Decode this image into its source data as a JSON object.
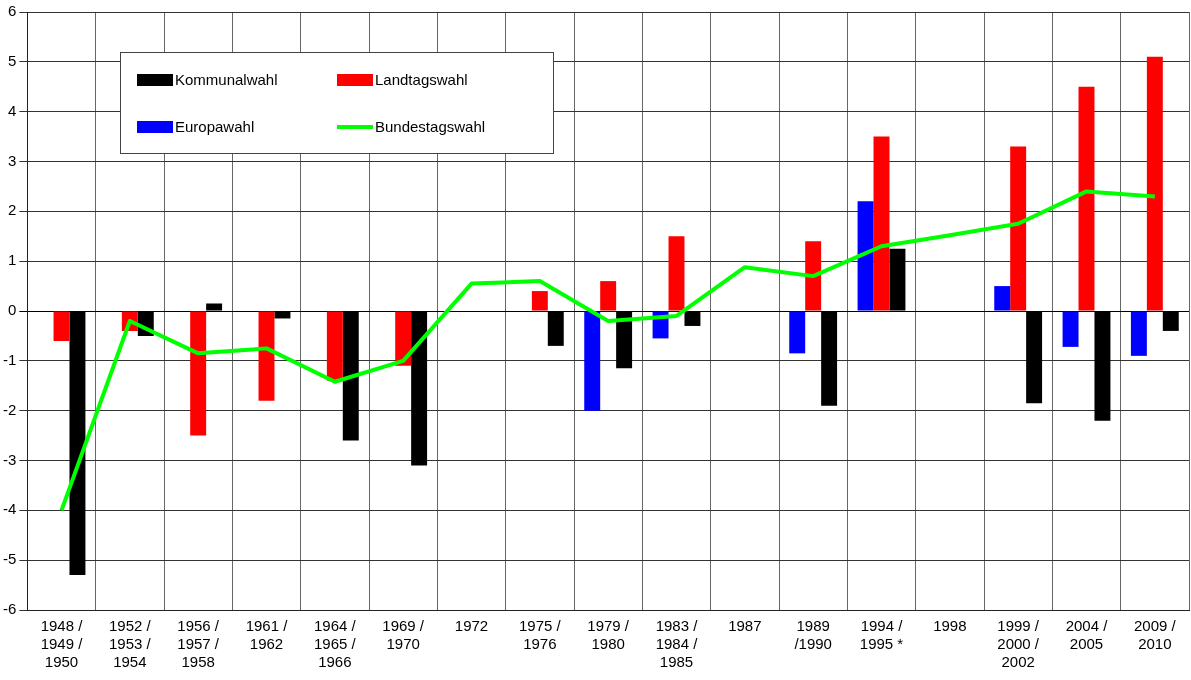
{
  "chart_data": {
    "type": "bar",
    "categories": [
      "1948 /\n1949 /\n1950",
      "1952 /\n1953 /\n1954",
      "1956 /\n1957 /\n1958",
      "1961 /\n1962",
      "1964 /\n1965 /\n1966",
      "1969 /\n1970",
      "1972",
      "1975 /\n1976",
      "1979 /\n1980",
      "1983 /\n1984 /\n1985",
      "1987",
      "1989\n/1990",
      "1994 /\n1995 *",
      "1998",
      "1999 /\n2000 /\n2002",
      "2004 /\n2005",
      "2009 /\n2010"
    ],
    "series": [
      {
        "name": "Kommunalwahl",
        "color": "#000000",
        "values": [
          -5.3,
          -0.5,
          0.15,
          -0.15,
          -2.6,
          -3.1,
          null,
          -0.7,
          -1.15,
          -0.3,
          null,
          -1.9,
          1.25,
          null,
          -1.85,
          -2.2,
          -0.4
        ]
      },
      {
        "name": "Landtagswahl",
        "color": "#ff0000",
        "values": [
          -0.6,
          -0.4,
          -2.5,
          -1.8,
          -1.4,
          -1.1,
          null,
          0.4,
          0.6,
          1.5,
          null,
          1.4,
          3.5,
          null,
          3.3,
          4.5,
          5.1
        ]
      },
      {
        "name": "Europawahl",
        "color": "#0000ff",
        "values": [
          null,
          null,
          null,
          null,
          null,
          null,
          null,
          null,
          -2.0,
          -0.55,
          null,
          -0.85,
          2.2,
          null,
          0.5,
          -0.72,
          -0.9
        ]
      },
      {
        "name": "Bundestagswahl",
        "type": "line",
        "color": "#00ff00",
        "values": [
          -4.0,
          -0.2,
          -0.85,
          -0.75,
          -1.42,
          -1.0,
          0.55,
          0.6,
          -0.2,
          -0.1,
          0.88,
          0.7,
          1.3,
          1.52,
          1.75,
          2.4,
          2.3
        ]
      }
    ],
    "ylim": [
      -6,
      6
    ],
    "yticks": [
      -6,
      -5,
      -4,
      -3,
      -2,
      -1,
      0,
      1,
      2,
      3,
      4,
      5,
      6
    ],
    "grid": true,
    "legend": "top left",
    "marker": "none"
  }
}
